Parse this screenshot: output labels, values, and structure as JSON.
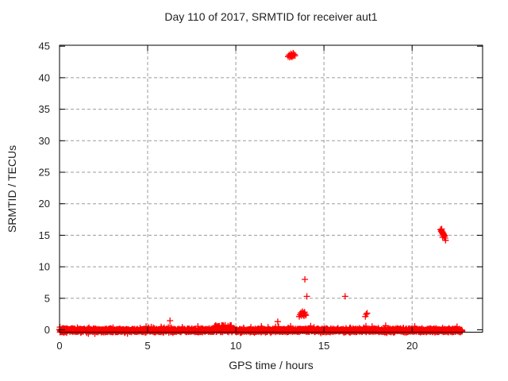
{
  "title": "Day 110 of 2017, SRMTID for receiver aut1",
  "chart_data": {
    "type": "scatter",
    "title": "Day 110 of 2017, SRMTID for receiver aut1",
    "xlabel": "GPS time / hours",
    "ylabel": "SRMTID / TECUs",
    "xlim": [
      0,
      24
    ],
    "ylim": [
      -0.4,
      45.15
    ],
    "x_ticks": [
      0,
      5,
      10,
      15,
      20
    ],
    "y_ticks": [
      0,
      5,
      10,
      15,
      20,
      25,
      30,
      35,
      40,
      45
    ],
    "grid": true,
    "legend": "none",
    "marker": "plus",
    "marker_color": "#ff0000",
    "grid_color": "#9b9b9b",
    "axis_color": "#000000",
    "series": {
      "baseline_band": {
        "description": "dense noise band of SRMTID values hugging 0 TECUs for the whole day",
        "x_start": 0,
        "x_end": 22.85,
        "n": 2400,
        "y_center": -0.1,
        "y_spread": 0.32,
        "bump": {
          "x_start": 8.75,
          "x_end": 9.75,
          "prob": 0.3,
          "y_min": 0.15,
          "y_max": 0.75
        },
        "gap": {
          "x_start": 13.15,
          "x_end": 13.45,
          "drop": 0.5
        },
        "seed": 20170110
      },
      "outliers": [
        [
          6.27,
          1.45
        ],
        [
          7.85,
          0.55
        ],
        [
          11.45,
          0.55
        ],
        [
          12.38,
          1.3
        ],
        [
          12.43,
          0.5
        ],
        [
          13.92,
          8.0
        ],
        [
          14.03,
          5.3
        ],
        [
          16.2,
          5.3
        ],
        [
          17.35,
          2.1
        ],
        [
          17.4,
          2.45
        ],
        [
          17.45,
          2.65
        ],
        [
          18.5,
          0.65
        ],
        [
          20.15,
          0.55
        ],
        [
          22.55,
          0.5
        ]
      ],
      "cluster_high_13h": [
        [
          12.97,
          43.35
        ],
        [
          13.02,
          43.6
        ],
        [
          13.06,
          43.25
        ],
        [
          13.09,
          43.5
        ],
        [
          13.12,
          43.8
        ],
        [
          13.14,
          43.4
        ],
        [
          13.17,
          43.65
        ],
        [
          13.19,
          43.3
        ],
        [
          13.22,
          43.55
        ],
        [
          13.25,
          43.9
        ],
        [
          13.28,
          43.45
        ],
        [
          13.32,
          43.7
        ],
        [
          13.36,
          43.5
        ]
      ],
      "cluster_mid_14h": [
        [
          13.6,
          2.1
        ],
        [
          13.65,
          2.4
        ],
        [
          13.69,
          2.7
        ],
        [
          13.72,
          2.25
        ],
        [
          13.75,
          2.55
        ],
        [
          13.78,
          2.9
        ],
        [
          13.81,
          2.4
        ],
        [
          13.84,
          2.65
        ],
        [
          13.87,
          2.2
        ],
        [
          13.9,
          2.8
        ],
        [
          13.93,
          2.5
        ],
        [
          13.97,
          2.3
        ]
      ],
      "cluster_22h": [
        [
          21.62,
          15.9
        ],
        [
          21.65,
          15.6
        ],
        [
          21.67,
          15.75
        ],
        [
          21.68,
          16.0
        ],
        [
          21.7,
          15.4
        ],
        [
          21.72,
          15.55
        ],
        [
          21.73,
          14.7
        ],
        [
          21.74,
          15.2
        ],
        [
          21.76,
          15.35
        ],
        [
          21.78,
          15.0
        ],
        [
          21.8,
          15.15
        ],
        [
          21.82,
          14.8
        ],
        [
          21.85,
          14.95
        ],
        [
          21.87,
          14.55
        ],
        [
          21.9,
          14.2
        ]
      ]
    }
  }
}
